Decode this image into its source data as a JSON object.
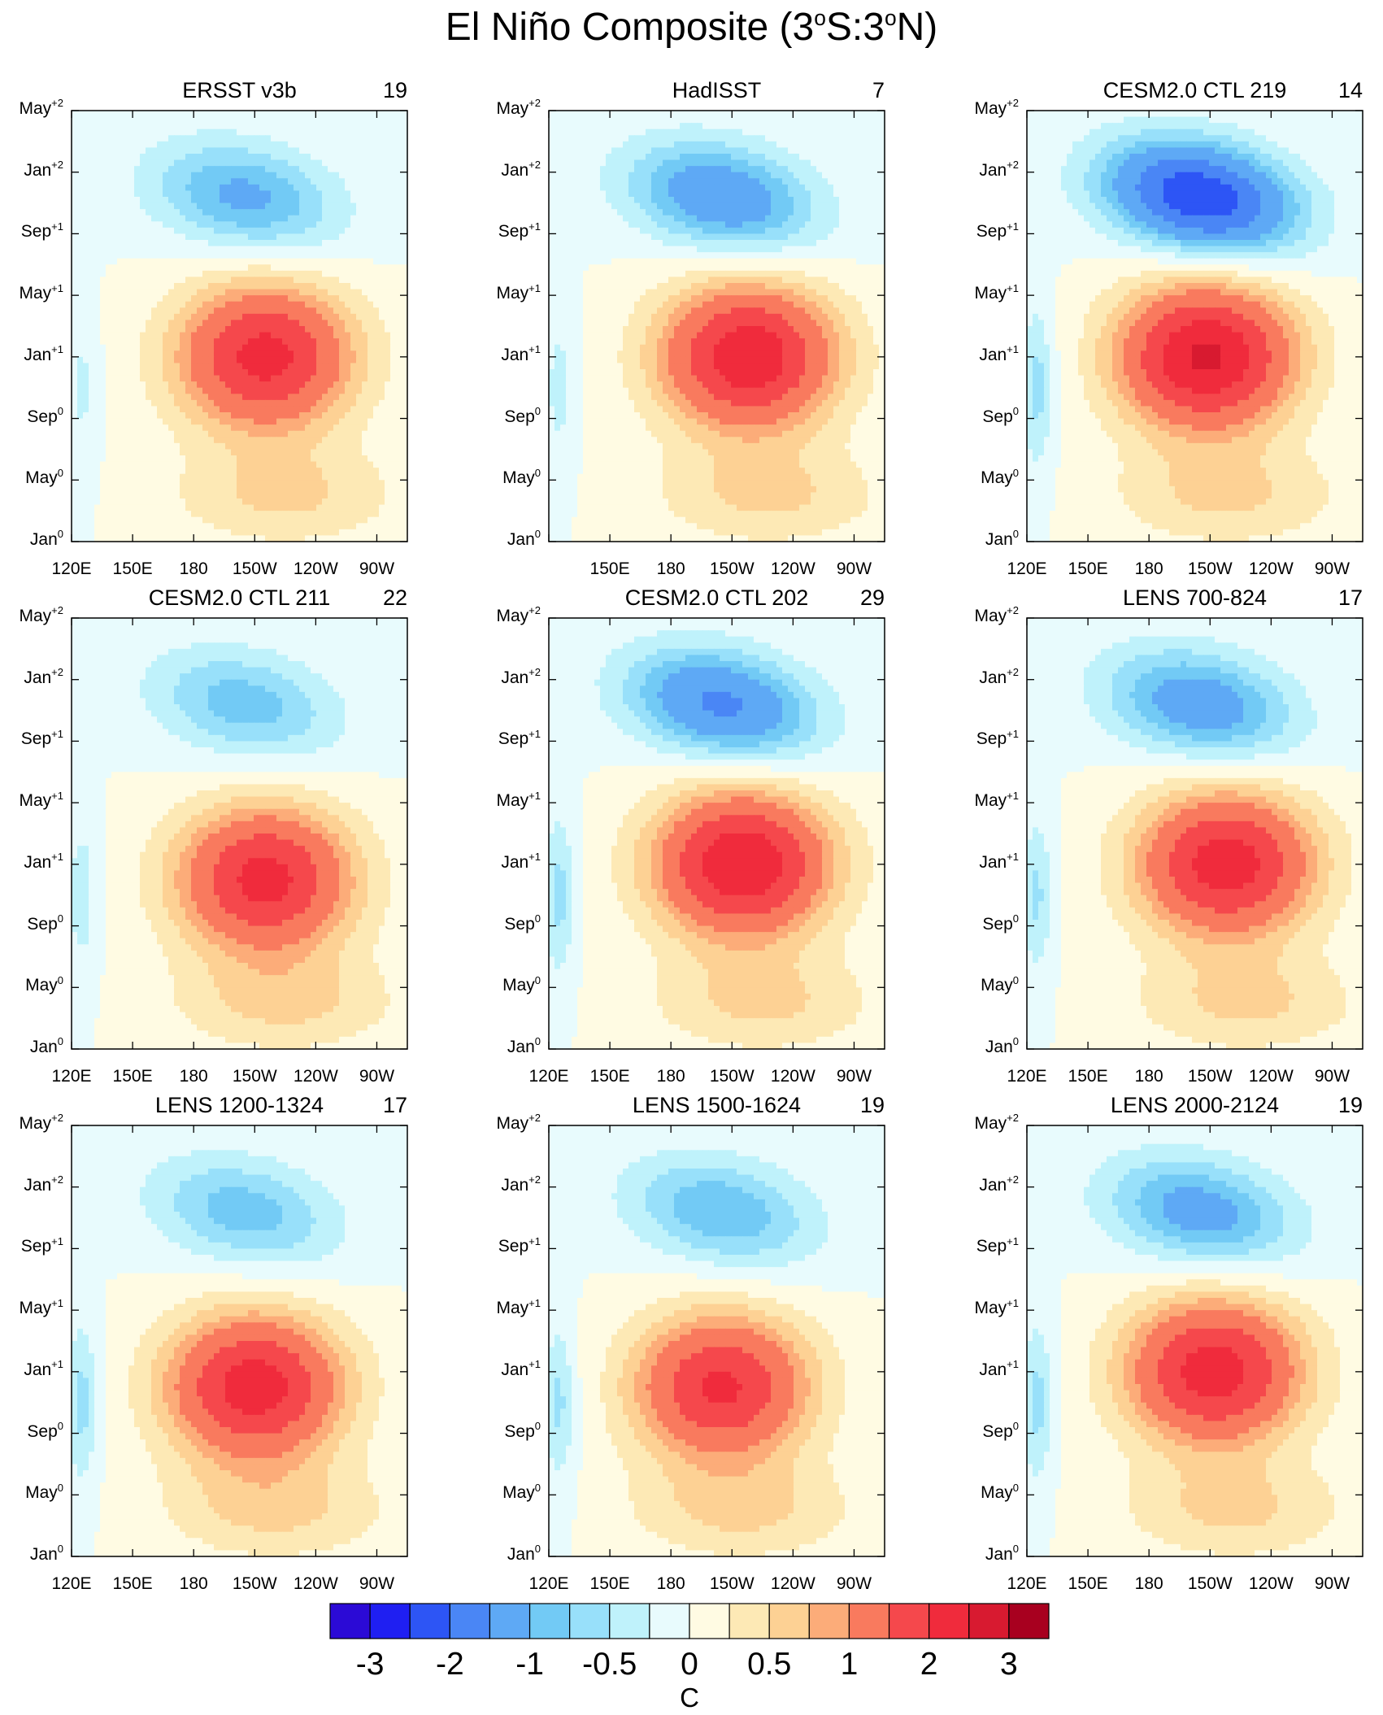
{
  "figure": {
    "title_main": "El Niño Composite (3",
    "title_sup1": "o",
    "title_mid": "S:3",
    "title_sup2": "o",
    "title_end": "N)"
  },
  "chart_data": {
    "type": "heatmap",
    "x_ticks": [
      "120E",
      "150E",
      "180",
      "150W",
      "120W",
      "90W"
    ],
    "x_tick_values_deg_east": [
      120,
      150,
      180,
      210,
      240,
      270
    ],
    "y_ticks": [
      {
        "month": "Jan",
        "sup": "0"
      },
      {
        "month": "May",
        "sup": "0"
      },
      {
        "month": "Sep",
        "sup": "0"
      },
      {
        "month": "Jan",
        "sup": "+1"
      },
      {
        "month": "May",
        "sup": "+1"
      },
      {
        "month": "Sep",
        "sup": "+1"
      },
      {
        "month": "Jan",
        "sup": "+2"
      },
      {
        "month": "May",
        "sup": "+2"
      }
    ],
    "y_range_months": [
      0,
      28
    ],
    "units": "C",
    "colorbar_levels": [
      -3,
      -2.5,
      -2,
      -1.5,
      -1,
      -0.75,
      -0.5,
      -0.25,
      0,
      0.25,
      0.5,
      0.75,
      1,
      1.5,
      2,
      2.5,
      3
    ],
    "colorbar_labels": [
      "-3",
      "-2",
      "-1",
      "-0.5",
      "0",
      "0.5",
      "1",
      "2",
      "3"
    ],
    "colorbar_label_levels": [
      -3,
      -2,
      -1,
      -0.5,
      0,
      0.5,
      1,
      2,
      3
    ],
    "colorbar_colors": [
      "#2b0ad6",
      "#1f1ff2",
      "#2d55f5",
      "#4a86f5",
      "#5ea9f5",
      "#72caf5",
      "#98e0fa",
      "#bff2fb",
      "#e8fbfd",
      "#fffbe3",
      "#fde9b5",
      "#fdd194",
      "#fcac79",
      "#f97a5e",
      "#f5484c",
      "#f02b3c",
      "#d81a30",
      "#a8001f"
    ],
    "panels": [
      {
        "title": "ERSST v3b",
        "count": "19",
        "peak": 2.2,
        "peak_lon": 215,
        "peak_month": 12,
        "lead_cool": -1.1,
        "phase_lon": 168,
        "west_bias": -0.3,
        "x_labels": true
      },
      {
        "title": "HadISST",
        "count": "7",
        "peak": 2.4,
        "peak_lon": 218,
        "peak_month": 12,
        "lead_cool": -1.4,
        "phase_lon": 172,
        "west_bias": -0.35,
        "x_labels": false
      },
      {
        "title": "CESM2.0 CTL 219",
        "count": "14",
        "peak": 2.6,
        "peak_lon": 208,
        "peak_month": 12,
        "lead_cool": -2.4,
        "phase_lon": 162,
        "west_bias": -0.6,
        "x_labels": true
      },
      {
        "title": "CESM2.0 CTL 211",
        "count": "22",
        "peak": 2.2,
        "peak_lon": 215,
        "peak_month": 11,
        "lead_cool": -0.9,
        "phase_lon": 150,
        "west_bias": -0.4,
        "x_labels": true
      },
      {
        "title": "CESM2.0 CTL 202",
        "count": "29",
        "peak": 2.5,
        "peak_lon": 215,
        "peak_month": 12,
        "lead_cool": -1.6,
        "phase_lon": 168,
        "west_bias": -0.6,
        "x_labels": true
      },
      {
        "title": "LENS 700-824",
        "count": "17",
        "peak": 2.3,
        "peak_lon": 218,
        "peak_month": 12,
        "lead_cool": -1.3,
        "phase_lon": 165,
        "west_bias": -0.55,
        "x_labels": true
      },
      {
        "title": "LENS 1200-1324",
        "count": "17",
        "peak": 2.3,
        "peak_lon": 210,
        "peak_month": 11,
        "lead_cool": -0.9,
        "phase_lon": 160,
        "west_bias": -0.6,
        "x_labels": true
      },
      {
        "title": "LENS 1500-1624",
        "count": "19",
        "peak": 2.1,
        "peak_lon": 205,
        "peak_month": 11,
        "lead_cool": -1.0,
        "phase_lon": 165,
        "west_bias": -0.55,
        "x_labels": true
      },
      {
        "title": "LENS 2000-2124",
        "count": "19",
        "peak": 2.3,
        "peak_lon": 212,
        "peak_month": 12,
        "lead_cool": -1.2,
        "phase_lon": 165,
        "west_bias": -0.6,
        "x_labels": true
      }
    ]
  }
}
